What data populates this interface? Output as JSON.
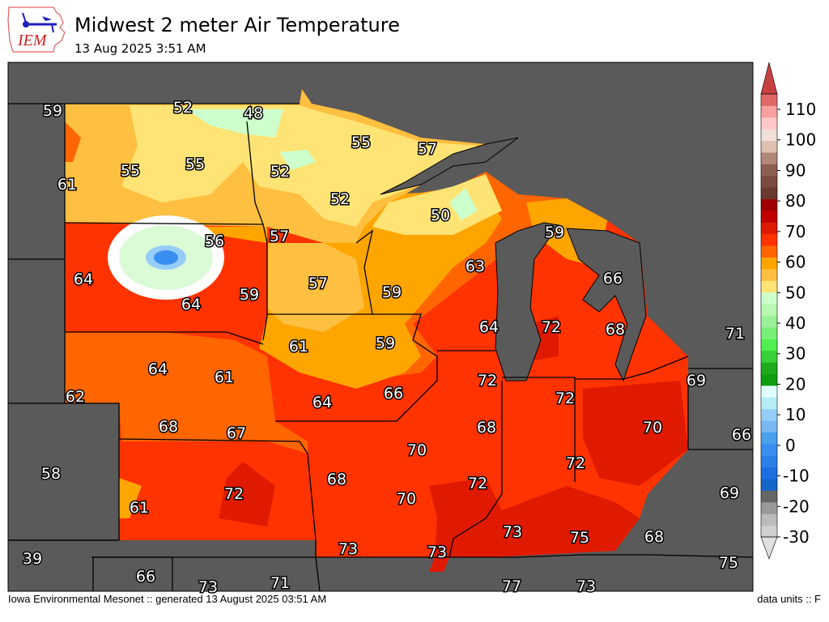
{
  "header": {
    "logo_text": "IEM",
    "title": "Midwest 2 meter Air Temperature",
    "subtitle": "13 Aug 2025 3:51 AM"
  },
  "footer": {
    "left": "Iowa Environmental Mesonet :: generated 13 August 2025 03:51 AM",
    "right": "data units :: F"
  },
  "colorbar": {
    "ticks": [
      "-30",
      "-20",
      "-10",
      "0",
      "10",
      "20",
      "30",
      "40",
      "50",
      "60",
      "70",
      "80",
      "90",
      "100",
      "110"
    ],
    "colors": [
      "#d0d0d0",
      "#bbbbbb",
      "#999999",
      "#666666",
      "#1565c8",
      "#1e6ee0",
      "#2b7fe8",
      "#3a8ef0",
      "#4aa0ec",
      "#78b8f2",
      "#96cdf8",
      "#b4eef4",
      "#e0ffff",
      "#0f9e0f",
      "#1eac1e",
      "#38d038",
      "#50f050",
      "#78f078",
      "#98f098",
      "#b8f8b0",
      "#ccffcc",
      "#ffe475",
      "#ffbf40",
      "#ffa500",
      "#ff6600",
      "#ff3300",
      "#e01a00",
      "#c00000",
      "#a00000",
      "#683a30",
      "#7a4a40",
      "#8c6050",
      "#b08878",
      "#e0c0b0",
      "#f0e0d8",
      "#ffc8c8",
      "#f8a0a0",
      "#e06868"
    ],
    "under_color": "#e0e0e0",
    "over_color": "#c84040"
  },
  "map": {
    "background_color": "#5a5a5a",
    "station_values": [
      "59",
      "52",
      "48",
      "55",
      "57",
      "55",
      "55",
      "52",
      "61",
      "52",
      "50",
      "56",
      "57",
      "59",
      "63",
      "64",
      "57",
      "66",
      "59",
      "59",
      "64",
      "64",
      "72",
      "68",
      "71",
      "61",
      "59",
      "64",
      "61",
      "72",
      "69",
      "62",
      "66",
      "72",
      "64",
      "68",
      "67",
      "68",
      "70",
      "66",
      "70",
      "58",
      "68",
      "72",
      "72",
      "69",
      "72",
      "70",
      "61",
      "73",
      "75",
      "68",
      "73",
      "73",
      "39",
      "75",
      "66",
      "71",
      "73",
      "77",
      "73"
    ]
  }
}
